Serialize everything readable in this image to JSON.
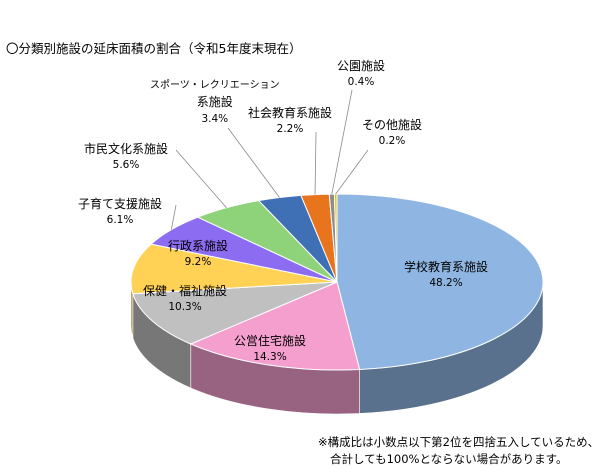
{
  "chart_data": {
    "type": "pie",
    "title": "〇分類別施設の延床面積の割合（令和5年度末現在）",
    "slices": [
      {
        "name": "学校教育系施設",
        "pct_label": "48.2%",
        "value": 48.2,
        "color": "#8fb6e2"
      },
      {
        "name": "公営住宅施設",
        "pct_label": "14.3%",
        "value": 14.3,
        "color": "#f59fcf"
      },
      {
        "name": "保健・福祉施設",
        "pct_label": "10.3%",
        "value": 10.3,
        "color": "#c0c0c0"
      },
      {
        "name": "行政系施設",
        "pct_label": "9.2%",
        "value": 9.2,
        "color": "#ffd256"
      },
      {
        "name": "子育て支援施設",
        "pct_label": "6.1%",
        "value": 6.1,
        "color": "#8c6cf0"
      },
      {
        "name": "市民文化系施設",
        "pct_label": "5.6%",
        "value": 5.6,
        "color": "#8ed37a"
      },
      {
        "name": "スポーツ・レクリエーション系施設",
        "name_line1": "スポーツ・レクリエーション",
        "name_line2": "系施設",
        "pct_label": "3.4%",
        "value": 3.4,
        "color": "#3f6fb5"
      },
      {
        "name": "社会教育系施設",
        "pct_label": "2.2%",
        "value": 2.2,
        "color": "#e8741e"
      },
      {
        "name": "公園施設",
        "pct_label": "0.4%",
        "value": 0.4,
        "color": "#8e8e8e"
      },
      {
        "name": "その他施設",
        "pct_label": "0.2%",
        "value": 0.2,
        "color": "#e8c000"
      }
    ]
  },
  "note": {
    "line1": "※構成比は小数点以下第2位を四捨五入しているため、",
    "line2": "合計しても100%とならない場合があります。"
  }
}
